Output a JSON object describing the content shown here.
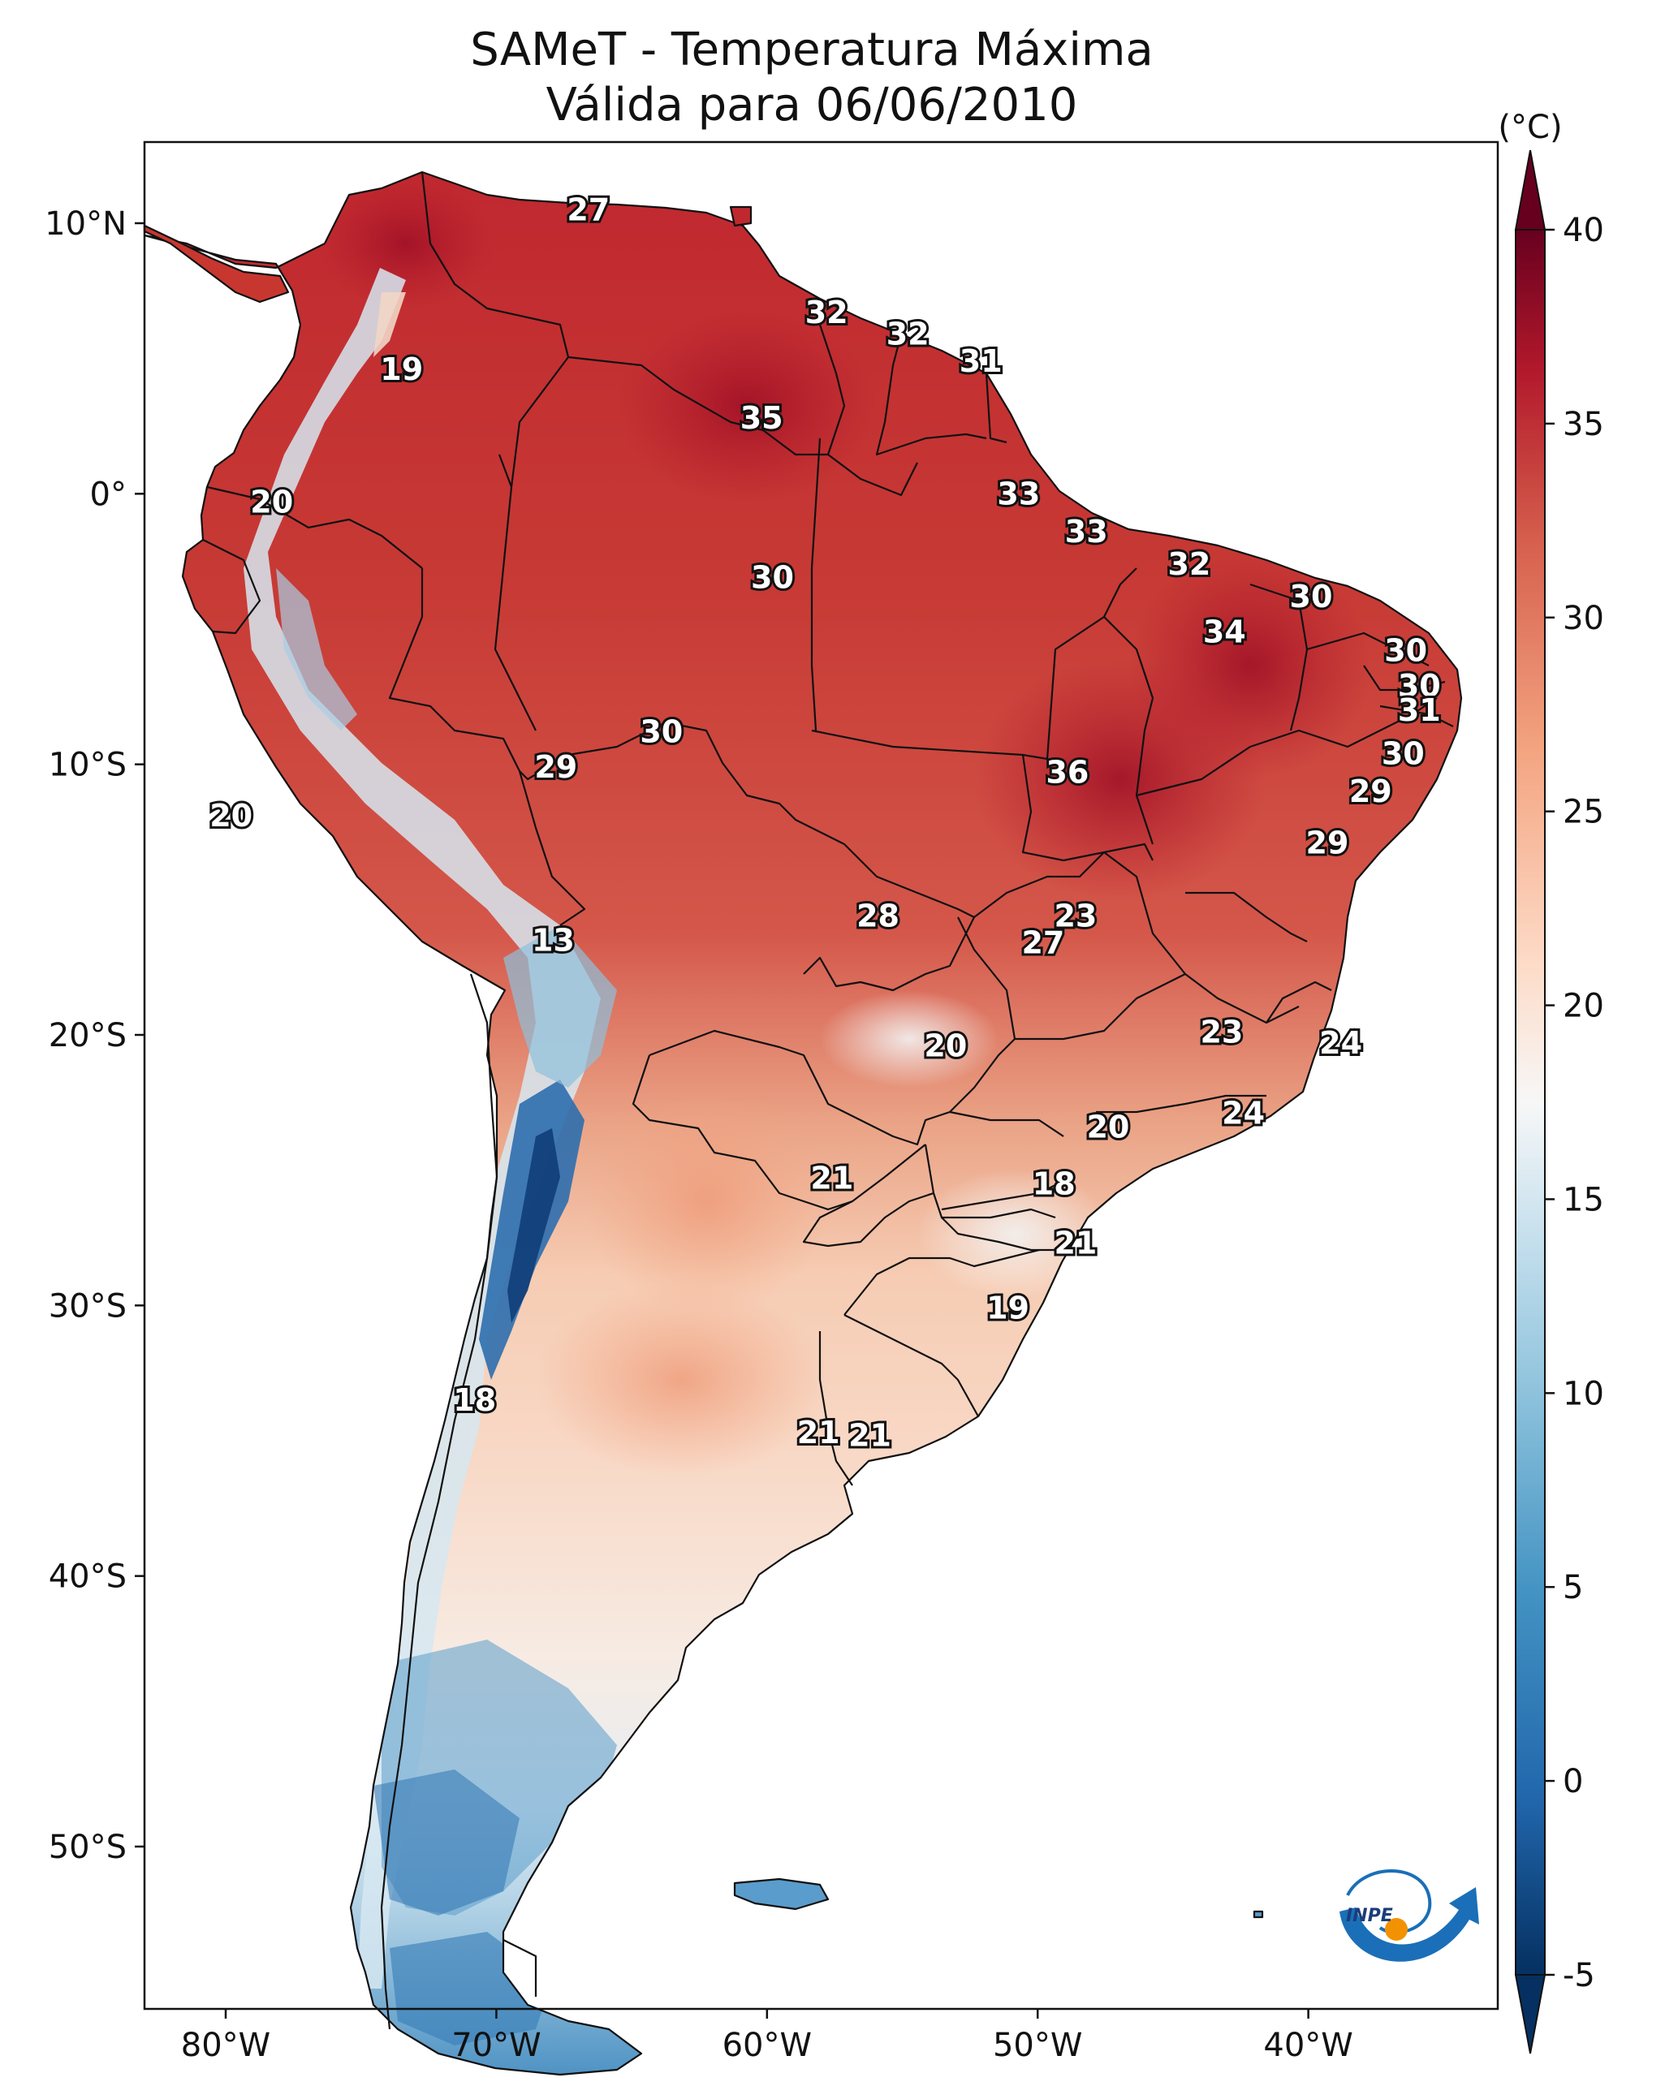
{
  "title": {
    "line1": "SAMeT - Temperatura Máxima",
    "line2": "Válida para 06/06/2010"
  },
  "map": {
    "lon_range": [
      -83,
      -33
    ],
    "lat_range": [
      -56,
      13
    ],
    "lon_ticks": [
      {
        "lon": -80,
        "label": "80°W"
      },
      {
        "lon": -70,
        "label": "70°W"
      },
      {
        "lon": -60,
        "label": "60°W"
      },
      {
        "lon": -50,
        "label": "50°W"
      },
      {
        "lon": -40,
        "label": "40°W"
      }
    ],
    "lat_ticks": [
      {
        "lat": 10,
        "label": "10°N"
      },
      {
        "lat": 0,
        "label": "0°"
      },
      {
        "lat": -10,
        "label": "10°S"
      },
      {
        "lat": -20,
        "label": "20°S"
      },
      {
        "lat": -30,
        "label": "30°S"
      },
      {
        "lat": -40,
        "label": "40°S"
      },
      {
        "lat": -50,
        "label": "50°S"
      }
    ],
    "station_labels": [
      {
        "lon": -66.6,
        "lat": 10.5,
        "value": "27"
      },
      {
        "lon": -57.8,
        "lat": 6.7,
        "value": "32"
      },
      {
        "lon": -54.8,
        "lat": 5.9,
        "value": "32"
      },
      {
        "lon": -52.1,
        "lat": 4.9,
        "value": "31"
      },
      {
        "lon": -73.5,
        "lat": 4.6,
        "value": "19"
      },
      {
        "lon": -60.2,
        "lat": 2.8,
        "value": "35"
      },
      {
        "lon": -50.7,
        "lat": 0.0,
        "value": "33"
      },
      {
        "lon": -78.3,
        "lat": -0.3,
        "value": "20"
      },
      {
        "lon": -48.2,
        "lat": -1.4,
        "value": "33"
      },
      {
        "lon": -44.4,
        "lat": -2.6,
        "value": "32"
      },
      {
        "lon": -59.8,
        "lat": -3.1,
        "value": "30"
      },
      {
        "lon": -39.9,
        "lat": -3.8,
        "value": "30"
      },
      {
        "lon": -43.1,
        "lat": -5.1,
        "value": "34"
      },
      {
        "lon": -36.4,
        "lat": -5.8,
        "value": "30"
      },
      {
        "lon": -35.9,
        "lat": -7.1,
        "value": "30"
      },
      {
        "lon": -35.9,
        "lat": -8.0,
        "value": "31"
      },
      {
        "lon": -63.9,
        "lat": -8.8,
        "value": "30"
      },
      {
        "lon": -36.5,
        "lat": -9.6,
        "value": "30"
      },
      {
        "lon": -67.8,
        "lat": -10.1,
        "value": "29"
      },
      {
        "lon": -48.9,
        "lat": -10.3,
        "value": "36"
      },
      {
        "lon": -37.7,
        "lat": -11.0,
        "value": "29"
      },
      {
        "lon": -79.8,
        "lat": -11.9,
        "value": "20"
      },
      {
        "lon": -39.3,
        "lat": -12.9,
        "value": "29"
      },
      {
        "lon": -55.9,
        "lat": -15.6,
        "value": "28"
      },
      {
        "lon": -48.6,
        "lat": -15.6,
        "value": "23"
      },
      {
        "lon": -49.8,
        "lat": -16.6,
        "value": "27"
      },
      {
        "lon": -67.9,
        "lat": -16.5,
        "value": "13"
      },
      {
        "lon": -43.2,
        "lat": -19.9,
        "value": "23"
      },
      {
        "lon": -38.8,
        "lat": -20.3,
        "value": "24"
      },
      {
        "lon": -53.4,
        "lat": -20.4,
        "value": "20"
      },
      {
        "lon": -42.4,
        "lat": -22.9,
        "value": "24"
      },
      {
        "lon": -47.4,
        "lat": -23.4,
        "value": "20"
      },
      {
        "lon": -57.6,
        "lat": -25.3,
        "value": "21"
      },
      {
        "lon": -49.4,
        "lat": -25.5,
        "value": "18"
      },
      {
        "lon": -48.6,
        "lat": -27.7,
        "value": "21"
      },
      {
        "lon": -51.1,
        "lat": -30.1,
        "value": "19"
      },
      {
        "lon": -70.8,
        "lat": -33.5,
        "value": "18"
      },
      {
        "lon": -58.1,
        "lat": -34.7,
        "value": "21"
      },
      {
        "lon": -56.2,
        "lat": -34.8,
        "value": "21"
      }
    ]
  },
  "colorbar": {
    "unit": "(°C)",
    "min": -5,
    "max": 40,
    "ticks": [
      "-5",
      "0",
      "5",
      "10",
      "15",
      "20",
      "25",
      "30",
      "35",
      "40"
    ],
    "extend": "both",
    "colormap": "RdBu_r"
  },
  "logo": {
    "text": "INPE"
  }
}
